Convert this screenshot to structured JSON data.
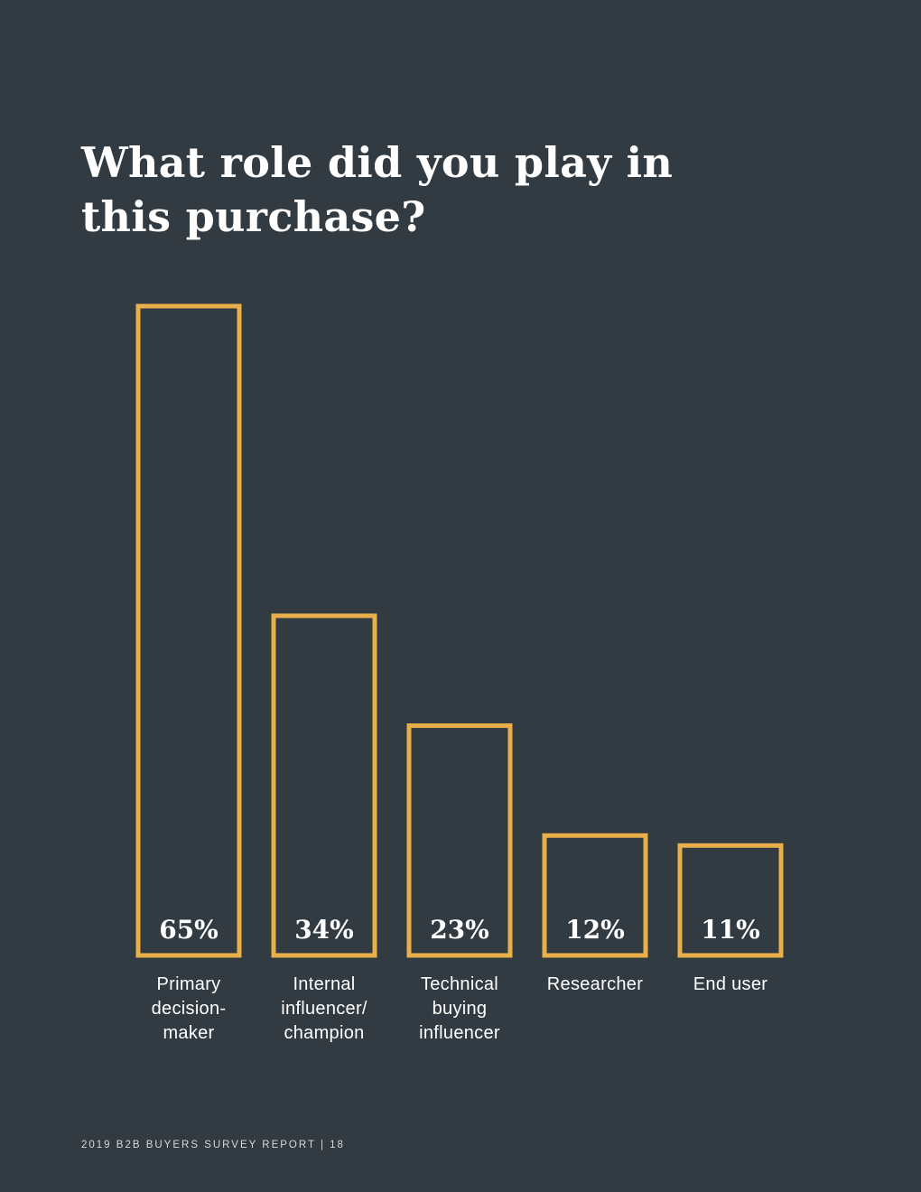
{
  "page": {
    "footer": "2019 B2B BUYERS SURVEY REPORT | 18"
  },
  "colors": {
    "background": "#323b42",
    "bar_outline": "#e8af4a",
    "text": "#ffffff"
  },
  "chart_data": {
    "type": "bar",
    "title": "What role did you play in this purchase?",
    "categories": [
      [
        "Primary",
        "decision-",
        "maker"
      ],
      [
        "Internal",
        "influencer/",
        "champion"
      ],
      [
        "Technical",
        "buying",
        "influencer"
      ],
      [
        "Researcher"
      ],
      [
        "End user"
      ]
    ],
    "values": [
      65,
      34,
      23,
      12,
      11
    ],
    "value_labels": [
      "65%",
      "34%",
      "23%",
      "12%",
      "11%"
    ],
    "unit": "%",
    "ylim": [
      0,
      65
    ],
    "grid": false,
    "legend": "none"
  }
}
